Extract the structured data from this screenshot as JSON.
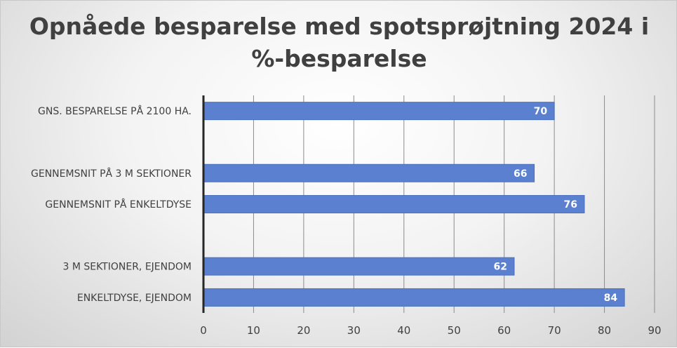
{
  "chart_data": {
    "type": "bar",
    "orientation": "horizontal",
    "title_line1": "Opnåede besparelse med spotsprøjtning 2024 i",
    "title_line2": "%-besparelse",
    "categories": [
      "GNS. BESPARELSE PÅ 2100 HA.",
      "",
      "GENNEMSNIT PÅ 3 M SEKTIONER",
      "GENNEMSNIT PÅ ENKELTDYSE",
      "",
      "3 M SEKTIONER, EJENDOM",
      "ENKELTDYSE, EJENDOM"
    ],
    "values": [
      70,
      null,
      66,
      76,
      null,
      62,
      84
    ],
    "xlim": [
      0,
      90
    ],
    "xticks": [
      0,
      10,
      20,
      30,
      40,
      50,
      60,
      70,
      80,
      90
    ],
    "xlabel": "",
    "ylabel": "",
    "grid": true,
    "legend": "none",
    "colors": {
      "bar": "#5b80cf",
      "bar_edge": "#4a6fbf",
      "grid": "#8c8c8c",
      "axis": "#262626",
      "text": "#404040",
      "data_label": "#ffffff"
    }
  }
}
